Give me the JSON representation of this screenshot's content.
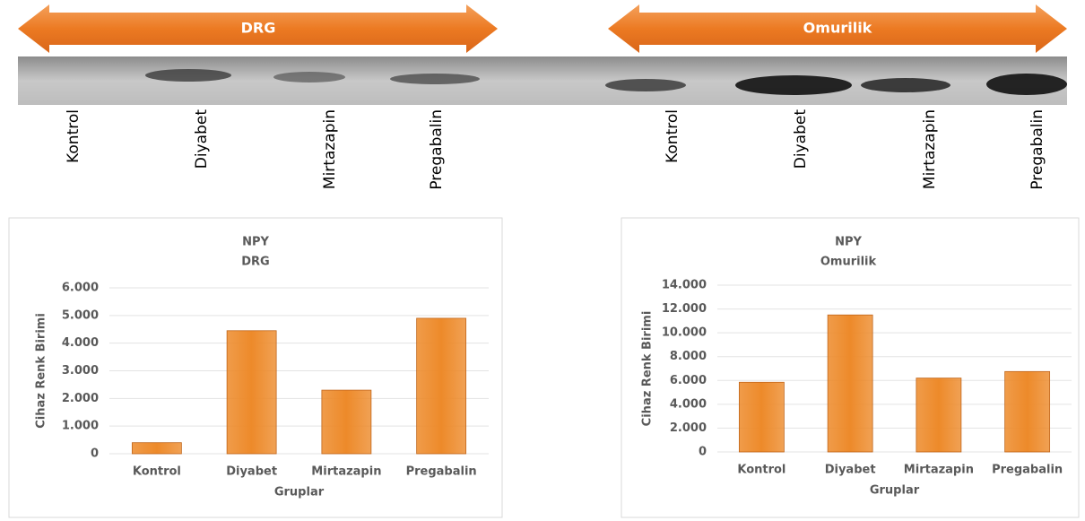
{
  "blot": {
    "groups": [
      "DRG",
      "Omurilik"
    ],
    "lanes": [
      [
        "Kontrol",
        "Diyabet",
        "Mirtazapin",
        "Pregabalin"
      ],
      [
        "Kontrol",
        "Diyabet",
        "Mirtazapin",
        "Pregabalin"
      ]
    ]
  },
  "chart_data": [
    {
      "type": "bar",
      "title": "NPY",
      "subtitle": "DRG",
      "x_label": "Gruplar",
      "y_label": "Cihaz Renk Birimi",
      "categories": [
        "Kontrol",
        "Diyabet",
        "Mirtazapin",
        "Pregabalin"
      ],
      "values": [
        400,
        4450,
        2300,
        4900
      ],
      "color": "#ed8a2a",
      "ylim": [
        0,
        6000
      ],
      "yticks": [
        0,
        {
          "value": 1000,
          "label": "1.000"
        },
        {
          "value": 2000,
          "label": "2.000"
        },
        {
          "value": 3000,
          "label": "3.000"
        },
        {
          "value": 4000,
          "label": "4.000"
        },
        {
          "value": 5000,
          "label": "5.000"
        },
        {
          "value": 6000,
          "label": "6.000"
        }
      ],
      "grid": true
    },
    {
      "type": "bar",
      "title": "NPY",
      "subtitle": "Omurilik",
      "x_label": "Gruplar",
      "y_label": "Cihaz Renk Birimi",
      "categories": [
        "Kontrol",
        "Diyabet",
        "Mirtazapin",
        "Pregabalin"
      ],
      "values": [
        5850,
        11500,
        6200,
        6750
      ],
      "color": "#ed8a2a",
      "ylim": [
        0,
        14000
      ],
      "yticks": [
        0,
        {
          "value": 2000,
          "label": "2.000"
        },
        {
          "value": 4000,
          "label": "4.000"
        },
        {
          "value": 6000,
          "label": "6.000"
        },
        {
          "value": 8000,
          "label": "8.000"
        },
        {
          "value": 10000,
          "label": "10.000"
        },
        {
          "value": 12000,
          "label": "12.000"
        },
        {
          "value": 14000,
          "label": "14.000"
        }
      ],
      "grid": true
    }
  ]
}
